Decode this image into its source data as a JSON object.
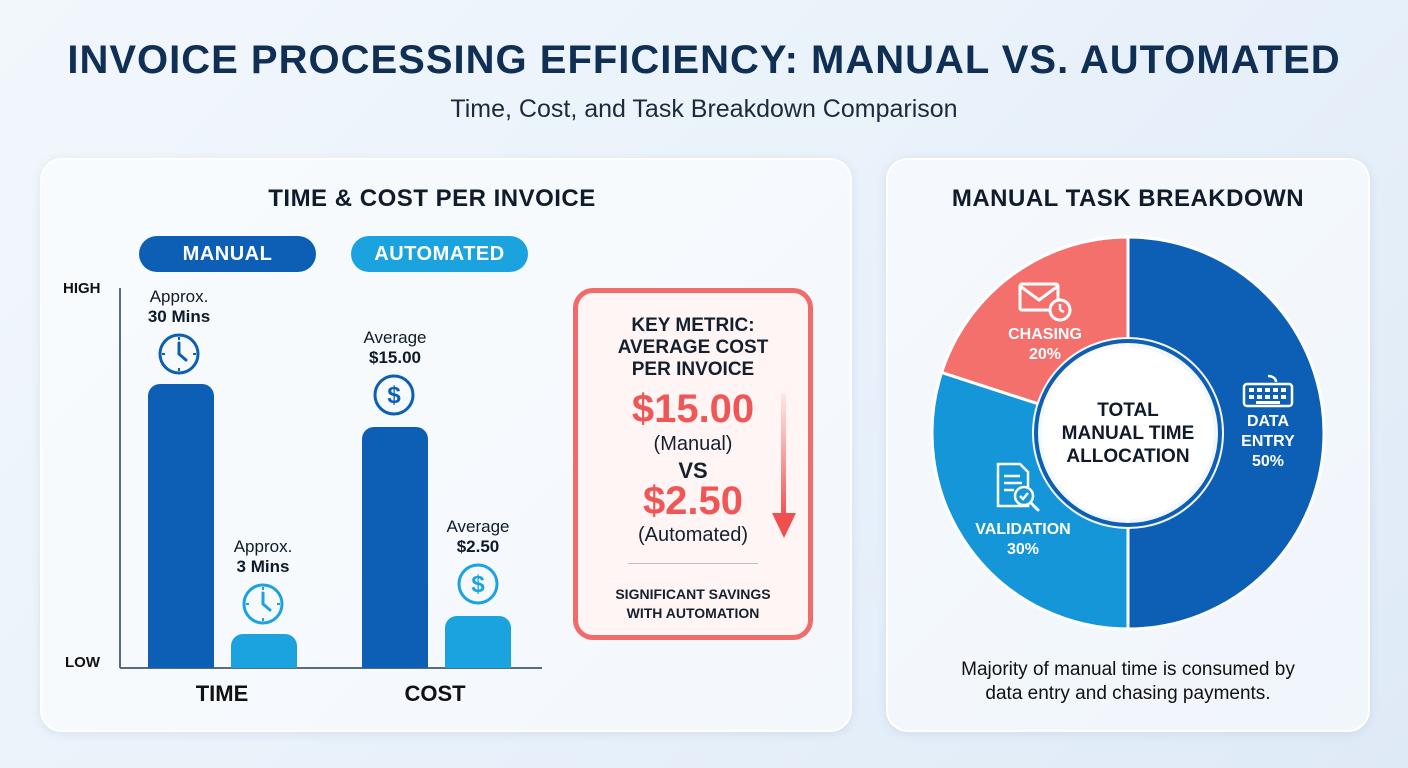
{
  "header": {
    "title": "INVOICE PROCESSING EFFICIENCY: MANUAL VS. AUTOMATED",
    "subtitle": "Time, Cost, and Task Breakdown Comparison"
  },
  "left_panel": {
    "heading": "TIME & COST PER INVOICE",
    "legend_manual": "MANUAL",
    "legend_automated": "AUTOMATED",
    "y_high": "HIGH",
    "y_low": "LOW",
    "manual_time_l1": "Approx.",
    "manual_time_l2": "30 Mins",
    "auto_time_l1": "Approx.",
    "auto_time_l2": "3 Mins",
    "manual_cost_l1": "Average",
    "manual_cost_l2": "$15.00",
    "auto_cost_l1": "Average",
    "auto_cost_l2": "$2.50",
    "x_time": "TIME",
    "x_cost": "COST"
  },
  "metric_card": {
    "title_l1": "KEY METRIC:",
    "title_l2": "AVERAGE COST",
    "title_l3": "PER INVOICE",
    "manual_value": "$15.00",
    "manual_label": "(Manual)",
    "vs": "VS",
    "auto_value": "$2.50",
    "auto_label": "(Automated)",
    "note_l1": "SIGNIFICANT SAVINGS",
    "note_l2": "WITH AUTOMATION"
  },
  "right_panel": {
    "heading": "MANUAL TASK BREAKDOWN",
    "center_l1": "TOTAL",
    "center_l2": "MANUAL TIME",
    "center_l3": "ALLOCATION",
    "data_entry_l1": "DATA",
    "data_entry_l2": "ENTRY",
    "data_entry_pct": "50%",
    "validation_l1": "VALIDATION",
    "validation_pct": "30%",
    "chasing_l1": "CHASING",
    "chasing_pct": "20%",
    "caption_l1": "Majority of manual time is consumed by",
    "caption_l2": "data entry and chasing payments."
  },
  "colors": {
    "manual": "#0c5fb5",
    "automated": "#1aa3df",
    "validation": "#1496d8",
    "chasing": "#f3706c",
    "accent_red": "#ef5757"
  },
  "chart_data": [
    {
      "type": "bar",
      "title": "TIME & COST PER INVOICE",
      "categories": [
        "TIME",
        "COST"
      ],
      "series": [
        {
          "name": "MANUAL",
          "values": [
            30,
            15.0
          ]
        },
        {
          "name": "AUTOMATED",
          "values": [
            3,
            2.5
          ]
        }
      ],
      "units": [
        "Mins",
        "$"
      ],
      "ylabel_high": "HIGH",
      "ylabel_low": "LOW"
    },
    {
      "type": "pie",
      "title": "MANUAL TASK BREAKDOWN",
      "categories": [
        "DATA ENTRY",
        "VALIDATION",
        "CHASING"
      ],
      "values": [
        50,
        30,
        20
      ]
    }
  ]
}
